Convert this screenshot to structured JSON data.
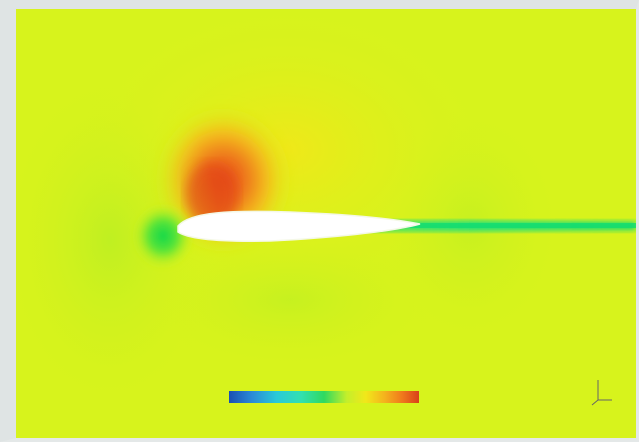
{
  "colors": {
    "background": "#d7f31c",
    "high_core": "#e6471a",
    "high_mid": "#f39a1a",
    "high_outer": "#f5dd18",
    "low_core": "#10d84a",
    "low_outer": "#7fe82a",
    "wake": "#1fe07a",
    "airfoil": "#ffffff"
  },
  "legend": {
    "title": "",
    "min_label": "",
    "max_label": "",
    "colormap": [
      "#1a4fb3",
      "#2a8ad6",
      "#29c9d9",
      "#33e0b0",
      "#2fd960",
      "#c4ef2a",
      "#f1e81a",
      "#f4b21d",
      "#f07a1c",
      "#d9401a"
    ]
  },
  "axis_triad": {
    "label": ""
  }
}
